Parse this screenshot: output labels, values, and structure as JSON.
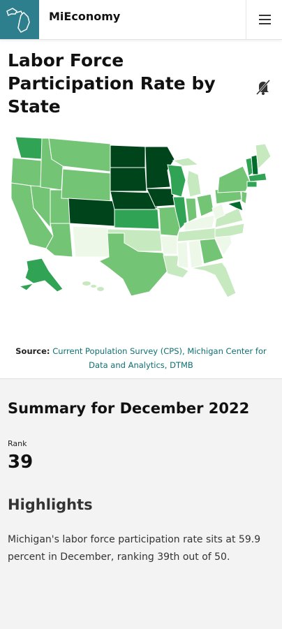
{
  "header": {
    "app_title": "MiEconomy",
    "logo_icon": "michigan-map-icon",
    "menu_icon": "hamburger-menu-icon"
  },
  "page": {
    "title": "Labor Force Participation Rate by State",
    "mute_icon": "bell-off-icon"
  },
  "map": {
    "type": "choropleth",
    "colors": {
      "lightest": "#edf8e9",
      "light": "#c7e9c0",
      "mid": "#74c476",
      "medium_dark": "#31a354",
      "dark": "#006d2c",
      "darkest": "#00441b"
    }
  },
  "source": {
    "label": "Source:",
    "text": "Current Population Survey (CPS), Michigan Center for Data and Analytics, DTMB"
  },
  "summary": {
    "title": "Summary for December 2022",
    "rank_label": "Rank",
    "rank_value": "39",
    "highlights_title": "Highlights",
    "highlights_text": "Michigan's labor force participation rate sits at 59.9 percent in December, ranking 39th out of 50."
  }
}
